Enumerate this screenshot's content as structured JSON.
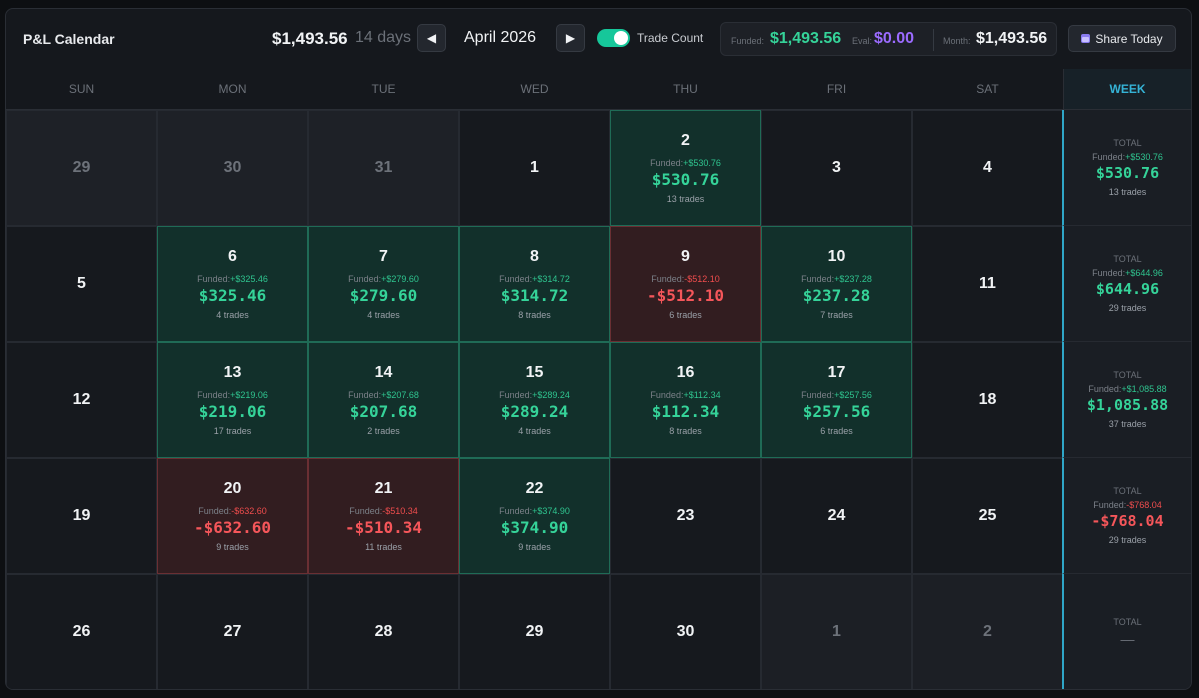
{
  "header": {
    "title": "P&L Calendar",
    "total": "$1,493.56",
    "days": "14 days",
    "prev_icon": "triangle-left-icon",
    "next_icon": "triangle-right-icon",
    "month": "April 2026",
    "toggle_label": "Trade Count",
    "toggle_on": true,
    "funded_label": "Funded:",
    "funded_value": "$1,493.56",
    "eval_label": "Eval:",
    "eval_value": "$0.00",
    "month_label": "Month:",
    "month_value": "$1,493.56",
    "share_label": "Share Today",
    "share_icon": "calendar-icon"
  },
  "colors": {
    "positive": "#35d399",
    "negative": "#f5565a",
    "eval": "#9b6bff",
    "accent": "#16c79a",
    "week_accent": "#35b3d6"
  },
  "weekdays": [
    "SUN",
    "MON",
    "TUE",
    "WED",
    "THU",
    "FRI",
    "SAT",
    "WEEK"
  ],
  "weeks": [
    {
      "days": [
        {
          "day": "29",
          "kind": "dim"
        },
        {
          "day": "30",
          "kind": "dim"
        },
        {
          "day": "31",
          "kind": "dim"
        },
        {
          "day": "1",
          "kind": "plain"
        },
        {
          "day": "2",
          "kind": "win",
          "funded": "+$530.76",
          "pnl": "$530.76",
          "trades": "13 trades"
        },
        {
          "day": "3",
          "kind": "plain"
        },
        {
          "day": "4",
          "kind": "plain"
        }
      ],
      "summary": {
        "label": "TOTAL",
        "funded": "+$530.76",
        "value": "$530.76",
        "trades": "13 trades",
        "sign": "pos"
      }
    },
    {
      "days": [
        {
          "day": "5",
          "kind": "plain"
        },
        {
          "day": "6",
          "kind": "win",
          "funded": "+$325.46",
          "pnl": "$325.46",
          "trades": "4 trades"
        },
        {
          "day": "7",
          "kind": "win",
          "funded": "+$279.60",
          "pnl": "$279.60",
          "trades": "4 trades"
        },
        {
          "day": "8",
          "kind": "win",
          "funded": "+$314.72",
          "pnl": "$314.72",
          "trades": "8 trades"
        },
        {
          "day": "9",
          "kind": "loss",
          "funded": "-$512.10",
          "pnl": "-$512.10",
          "trades": "6 trades"
        },
        {
          "day": "10",
          "kind": "win",
          "funded": "+$237.28",
          "pnl": "$237.28",
          "trades": "7 trades"
        },
        {
          "day": "11",
          "kind": "plain"
        }
      ],
      "summary": {
        "label": "TOTAL",
        "funded": "+$644.96",
        "value": "$644.96",
        "trades": "29 trades",
        "sign": "pos"
      }
    },
    {
      "days": [
        {
          "day": "12",
          "kind": "plain"
        },
        {
          "day": "13",
          "kind": "win",
          "funded": "+$219.06",
          "pnl": "$219.06",
          "trades": "17 trades"
        },
        {
          "day": "14",
          "kind": "win",
          "funded": "+$207.68",
          "pnl": "$207.68",
          "trades": "2 trades"
        },
        {
          "day": "15",
          "kind": "win",
          "funded": "+$289.24",
          "pnl": "$289.24",
          "trades": "4 trades"
        },
        {
          "day": "16",
          "kind": "win",
          "funded": "+$112.34",
          "pnl": "$112.34",
          "trades": "8 trades"
        },
        {
          "day": "17",
          "kind": "win",
          "funded": "+$257.56",
          "pnl": "$257.56",
          "trades": "6 trades"
        },
        {
          "day": "18",
          "kind": "plain"
        }
      ],
      "summary": {
        "label": "TOTAL",
        "funded": "+$1,085.88",
        "value": "$1,085.88",
        "trades": "37 trades",
        "sign": "pos"
      }
    },
    {
      "days": [
        {
          "day": "19",
          "kind": "plain"
        },
        {
          "day": "20",
          "kind": "loss",
          "funded": "-$632.60",
          "pnl": "-$632.60",
          "trades": "9 trades"
        },
        {
          "day": "21",
          "kind": "loss",
          "funded": "-$510.34",
          "pnl": "-$510.34",
          "trades": "11 trades"
        },
        {
          "day": "22",
          "kind": "win",
          "funded": "+$374.90",
          "pnl": "$374.90",
          "trades": "9 trades"
        },
        {
          "day": "23",
          "kind": "plain"
        },
        {
          "day": "24",
          "kind": "plain"
        },
        {
          "day": "25",
          "kind": "plain"
        }
      ],
      "summary": {
        "label": "TOTAL",
        "funded": "-$768.04",
        "value": "-$768.04",
        "trades": "29 trades",
        "sign": "neg"
      }
    },
    {
      "days": [
        {
          "day": "26",
          "kind": "plain"
        },
        {
          "day": "27",
          "kind": "plain"
        },
        {
          "day": "28",
          "kind": "plain"
        },
        {
          "day": "29",
          "kind": "plain"
        },
        {
          "day": "30",
          "kind": "plain"
        },
        {
          "day": "1",
          "kind": "outside"
        },
        {
          "day": "2",
          "kind": "outside"
        }
      ],
      "summary": {
        "label": "TOTAL",
        "dash": "—"
      }
    }
  ]
}
